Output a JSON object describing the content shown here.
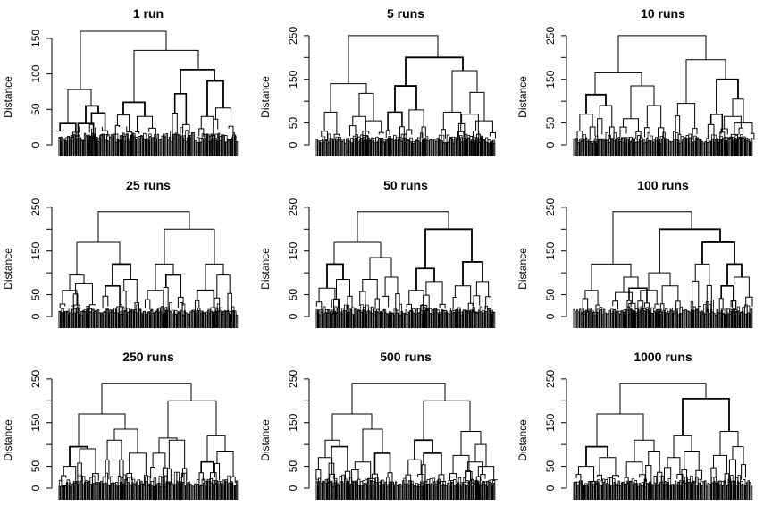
{
  "chart_data": [
    {
      "type": "dendrogram",
      "title": "1 run",
      "ylabel": "Distance",
      "ylim": [
        0,
        160
      ],
      "yticks": [
        0,
        50,
        100,
        150
      ],
      "merges": [
        {
          "x": 0.12,
          "h": 78,
          "span": 0.14,
          "children": [
            {
              "x": 0.05,
              "h": 30
            },
            {
              "x": 0.18,
              "h": 55,
              "span": 0.08,
              "children": [
                {
                  "x": 0.15,
                  "h": 30
                },
                {
                  "x": 0.22,
                  "h": 45
                }
              ]
            }
          ]
        },
        {
          "x": 0.6,
          "h": 133,
          "span": 0.34,
          "children": [
            {
              "x": 0.42,
              "h": 60,
              "span": 0.12,
              "children": [
                {
                  "x": 0.36,
                  "h": 42
                },
                {
                  "x": 0.48,
                  "h": 40
                }
              ]
            },
            {
              "x": 0.78,
              "h": 106,
              "span": 0.18,
              "children": [
                {
                  "x": 0.68,
                  "h": 72
                },
                {
                  "x": 0.87,
                  "h": 90,
                  "children": [
                    {
                      "x": 0.83,
                      "h": 40
                    },
                    {
                      "x": 0.92,
                      "h": 52
                    }
                  ]
                }
              ]
            }
          ]
        }
      ],
      "root": 160
    },
    {
      "type": "dendrogram",
      "title": "5 runs",
      "ylabel": "Distance",
      "ylim": [
        0,
        260
      ],
      "yticks": [
        0,
        50,
        150,
        250
      ],
      "merges": [
        {
          "x": 0.18,
          "h": 140,
          "span": 0.2,
          "children": [
            {
              "x": 0.08,
              "h": 75
            },
            {
              "x": 0.28,
              "h": 118,
              "children": [
                {
                  "x": 0.24,
                  "h": 65
                },
                {
                  "x": 0.32,
                  "h": 55
                }
              ]
            }
          ]
        },
        {
          "x": 0.68,
          "h": 200,
          "span": 0.3,
          "children": [
            {
              "x": 0.5,
              "h": 135,
              "span": 0.12,
              "children": [
                {
                  "x": 0.44,
                  "h": 75
                },
                {
                  "x": 0.56,
                  "h": 80
                }
              ]
            },
            {
              "x": 0.82,
              "h": 170,
              "span": 0.14,
              "children": [
                {
                  "x": 0.76,
                  "h": 75
                },
                {
                  "x": 0.9,
                  "h": 120,
                  "children": [
                    {
                      "x": 0.86,
                      "h": 70
                    },
                    {
                      "x": 0.94,
                      "h": 55
                    }
                  ]
                }
              ]
            }
          ]
        }
      ],
      "root": 250
    },
    {
      "type": "dendrogram",
      "title": "10 runs",
      "ylabel": "Distance",
      "ylim": [
        0,
        260
      ],
      "yticks": [
        0,
        50,
        150,
        250
      ],
      "merges": [
        {
          "x": 0.25,
          "h": 165,
          "span": 0.26,
          "children": [
            {
              "x": 0.12,
              "h": 115,
              "span": 0.1,
              "children": [
                {
                  "x": 0.07,
                  "h": 70
                },
                {
                  "x": 0.18,
                  "h": 90
                }
              ]
            },
            {
              "x": 0.38,
              "h": 135,
              "span": 0.14,
              "children": [
                {
                  "x": 0.32,
                  "h": 60
                },
                {
                  "x": 0.45,
                  "h": 90
                }
              ]
            }
          ]
        },
        {
          "x": 0.74,
          "h": 195,
          "span": 0.22,
          "children": [
            {
              "x": 0.63,
              "h": 95
            },
            {
              "x": 0.85,
              "h": 150,
              "span": 0.12,
              "children": [
                {
                  "x": 0.8,
                  "h": 70
                },
                {
                  "x": 0.92,
                  "h": 105,
                  "children": [
                    {
                      "x": 0.89,
                      "h": 65
                    },
                    {
                      "x": 0.95,
                      "h": 50
                    }
                  ]
                }
              ]
            }
          ]
        }
      ],
      "root": 250
    },
    {
      "type": "dendrogram",
      "title": "25 runs",
      "ylabel": "Distance",
      "ylim": [
        0,
        260
      ],
      "yticks": [
        0,
        50,
        150,
        250
      ],
      "merges": [
        {
          "x": 0.22,
          "h": 170,
          "span": 0.24,
          "children": [
            {
              "x": 0.1,
              "h": 95,
              "span": 0.1,
              "children": [
                {
                  "x": 0.06,
                  "h": 60
                },
                {
                  "x": 0.14,
                  "h": 75
                }
              ]
            },
            {
              "x": 0.34,
              "h": 120,
              "span": 0.12,
              "children": [
                {
                  "x": 0.3,
                  "h": 70
                },
                {
                  "x": 0.4,
                  "h": 85
                }
              ]
            }
          ]
        },
        {
          "x": 0.73,
          "h": 200,
          "span": 0.28,
          "children": [
            {
              "x": 0.59,
              "h": 120,
              "span": 0.12,
              "children": [
                {
                  "x": 0.54,
                  "h": 60
                },
                {
                  "x": 0.64,
                  "h": 95
                }
              ]
            },
            {
              "x": 0.87,
              "h": 120,
              "span": 0.12,
              "children": [
                {
                  "x": 0.82,
                  "h": 60
                },
                {
                  "x": 0.92,
                  "h": 95
                }
              ]
            }
          ]
        }
      ],
      "root": 240
    },
    {
      "type": "dendrogram",
      "title": "50 runs",
      "ylabel": "Distance",
      "ylim": [
        0,
        260
      ],
      "yticks": [
        0,
        50,
        150,
        250
      ],
      "merges": [
        {
          "x": 0.23,
          "h": 170,
          "span": 0.26,
          "children": [
            {
              "x": 0.1,
              "h": 120,
              "span": 0.1,
              "children": [
                {
                  "x": 0.06,
                  "h": 65
                },
                {
                  "x": 0.15,
                  "h": 85
                }
              ]
            },
            {
              "x": 0.36,
              "h": 135,
              "span": 0.14,
              "children": [
                {
                  "x": 0.3,
                  "h": 85
                },
                {
                  "x": 0.42,
                  "h": 90
                }
              ]
            }
          ]
        },
        {
          "x": 0.74,
          "h": 200,
          "span": 0.26,
          "children": [
            {
              "x": 0.61,
              "h": 110,
              "span": 0.1,
              "children": [
                {
                  "x": 0.56,
                  "h": 60
                },
                {
                  "x": 0.66,
                  "h": 80
                }
              ]
            },
            {
              "x": 0.87,
              "h": 125,
              "span": 0.12,
              "children": [
                {
                  "x": 0.82,
                  "h": 70
                },
                {
                  "x": 0.93,
                  "h": 80
                }
              ]
            }
          ]
        }
      ],
      "root": 240
    },
    {
      "type": "dendrogram",
      "title": "100 runs",
      "ylabel": "Distance",
      "ylim": [
        0,
        260
      ],
      "yticks": [
        0,
        50,
        150,
        250
      ],
      "merges": [
        {
          "x": 0.22,
          "h": 120,
          "span": 0.22,
          "children": [
            {
              "x": 0.1,
              "h": 60
            },
            {
              "x": 0.32,
              "h": 90,
              "span": 0.1,
              "children": [
                {
                  "x": 0.28,
                  "h": 55
                },
                {
                  "x": 0.36,
                  "h": 65
                }
              ]
            }
          ]
        },
        {
          "x": 0.66,
          "h": 200,
          "span": 0.32,
          "children": [
            {
              "x": 0.48,
              "h": 100,
              "span": 0.12,
              "children": [
                {
                  "x": 0.42,
                  "h": 60
                },
                {
                  "x": 0.54,
                  "h": 70
                }
              ]
            },
            {
              "x": 0.82,
              "h": 170,
              "span": 0.16,
              "children": [
                {
                  "x": 0.72,
                  "h": 120
                },
                {
                  "x": 0.9,
                  "h": 120,
                  "children": [
                    {
                      "x": 0.86,
                      "h": 70
                    },
                    {
                      "x": 0.94,
                      "h": 90
                    }
                  ]
                }
              ]
            }
          ]
        }
      ],
      "root": 240
    },
    {
      "type": "dendrogram",
      "title": "250 runs",
      "ylabel": "Distance",
      "ylim": [
        0,
        260
      ],
      "yticks": [
        0,
        50,
        150,
        250
      ],
      "merges": [
        {
          "x": 0.24,
          "h": 170,
          "span": 0.26,
          "children": [
            {
              "x": 0.11,
              "h": 95,
              "span": 0.1,
              "children": [
                {
                  "x": 0.06,
                  "h": 50
                },
                {
                  "x": 0.16,
                  "h": 90
                }
              ]
            },
            {
              "x": 0.37,
              "h": 135,
              "span": 0.14,
              "children": [
                {
                  "x": 0.31,
                  "h": 110
                },
                {
                  "x": 0.44,
                  "h": 80
                }
              ]
            }
          ]
        },
        {
          "x": 0.74,
          "h": 200,
          "span": 0.26,
          "children": [
            {
              "x": 0.61,
              "h": 115,
              "span": 0.1,
              "children": [
                {
                  "x": 0.56,
                  "h": 80
                },
                {
                  "x": 0.66,
                  "h": 110
                }
              ]
            },
            {
              "x": 0.88,
              "h": 120,
              "span": 0.12,
              "children": [
                {
                  "x": 0.83,
                  "h": 60
                },
                {
                  "x": 0.93,
                  "h": 85
                }
              ]
            }
          ]
        }
      ],
      "root": 240
    },
    {
      "type": "dendrogram",
      "title": "500 runs",
      "ylabel": "Distance",
      "ylim": [
        0,
        260
      ],
      "yticks": [
        0,
        50,
        150,
        250
      ],
      "merges": [
        {
          "x": 0.2,
          "h": 170,
          "span": 0.22,
          "children": [
            {
              "x": 0.09,
              "h": 110,
              "span": 0.08,
              "children": [
                {
                  "x": 0.05,
                  "h": 70
                },
                {
                  "x": 0.13,
                  "h": 95
                }
              ]
            },
            {
              "x": 0.31,
              "h": 135,
              "span": 0.12,
              "children": [
                {
                  "x": 0.26,
                  "h": 60
                },
                {
                  "x": 0.37,
                  "h": 80
                }
              ]
            }
          ]
        },
        {
          "x": 0.72,
          "h": 200,
          "span": 0.26,
          "children": [
            {
              "x": 0.6,
              "h": 110,
              "span": 0.1,
              "children": [
                {
                  "x": 0.55,
                  "h": 65
                },
                {
                  "x": 0.65,
                  "h": 80
                }
              ]
            },
            {
              "x": 0.86,
              "h": 130,
              "span": 0.12,
              "children": [
                {
                  "x": 0.81,
                  "h": 75
                },
                {
                  "x": 0.92,
                  "h": 100,
                  "children": [
                    {
                      "x": 0.89,
                      "h": 60
                    },
                    {
                      "x": 0.95,
                      "h": 50
                    }
                  ]
                }
              ]
            }
          ]
        }
      ],
      "root": 240
    },
    {
      "type": "dendrogram",
      "title": "1000 runs",
      "ylabel": "Distance",
      "ylim": [
        0,
        260
      ],
      "yticks": [
        0,
        50,
        150,
        250
      ],
      "merges": [
        {
          "x": 0.26,
          "h": 170,
          "span": 0.26,
          "children": [
            {
              "x": 0.13,
              "h": 95,
              "span": 0.1,
              "children": [
                {
                  "x": 0.07,
                  "h": 50
                },
                {
                  "x": 0.19,
                  "h": 70
                }
              ]
            },
            {
              "x": 0.39,
              "h": 110,
              "span": 0.12,
              "children": [
                {
                  "x": 0.34,
                  "h": 60
                },
                {
                  "x": 0.45,
                  "h": 85
                }
              ]
            }
          ]
        },
        {
          "x": 0.74,
          "h": 205,
          "span": 0.26,
          "children": [
            {
              "x": 0.61,
              "h": 120,
              "span": 0.1,
              "children": [
                {
                  "x": 0.56,
                  "h": 70
                },
                {
                  "x": 0.66,
                  "h": 85
                }
              ]
            },
            {
              "x": 0.87,
              "h": 130,
              "span": 0.12,
              "children": [
                {
                  "x": 0.82,
                  "h": 75
                },
                {
                  "x": 0.92,
                  "h": 95
                }
              ]
            }
          ]
        }
      ],
      "root": 240
    }
  ]
}
